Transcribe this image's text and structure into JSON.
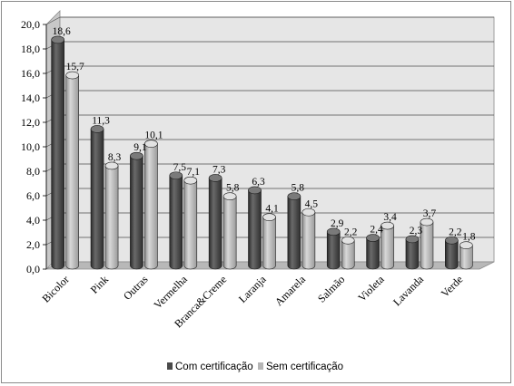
{
  "chart_data": {
    "type": "bar",
    "categories": [
      "Bicolor",
      "Pink",
      "Outras",
      "Vermelha",
      "Branca&Creme",
      "Laranja",
      "Amarela",
      "Salmão",
      "Violeta",
      "Lavanda",
      "Verde"
    ],
    "series": [
      {
        "name": "Com certificação",
        "values": [
          18.6,
          11.3,
          9.1,
          7.5,
          7.3,
          6.3,
          5.8,
          2.9,
          2.4,
          2.3,
          2.2
        ],
        "labels": [
          "18,6",
          "11,3",
          "9,1",
          "7,5",
          "7,3",
          "6,3",
          "5,8",
          "2,9",
          "2,4",
          "2,3",
          "2,2"
        ],
        "color": "#4a4a4a"
      },
      {
        "name": "Sem certificação",
        "values": [
          15.7,
          8.3,
          10.1,
          7.1,
          5.8,
          4.1,
          4.5,
          2.2,
          3.4,
          3.7,
          1.8
        ],
        "labels": [
          "15,7",
          "8,3",
          "10,1",
          "7,1",
          "5,8",
          "4,1",
          "4,5",
          "2,2",
          "3,4",
          "3,7",
          "1,8"
        ],
        "color": "#b5b5b5"
      }
    ],
    "ylim": [
      0,
      20
    ],
    "yticks": [
      "0,0",
      "2,0",
      "4,0",
      "6,0",
      "8,0",
      "10,0",
      "12,0",
      "14,0",
      "16,0",
      "18,0",
      "20,0"
    ],
    "grid": true,
    "legend": "bottom"
  }
}
